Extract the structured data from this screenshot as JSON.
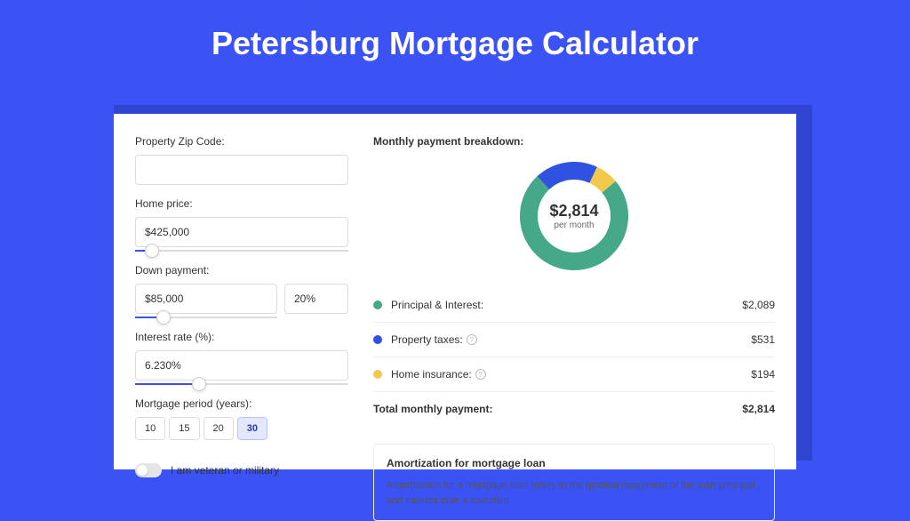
{
  "page": {
    "title": "Petersburg Mortgage Calculator",
    "background_color": "#3b52f5",
    "shadow_color": "#2f44d0",
    "card_bg": "#ffffff"
  },
  "form": {
    "zip": {
      "label": "Property Zip Code:",
      "value": ""
    },
    "home_price": {
      "label": "Home price:",
      "value": "$425,000",
      "slider_pct": 8
    },
    "down_payment": {
      "label": "Down payment:",
      "amount": "$85,000",
      "percent": "20%",
      "slider_pct": 20
    },
    "interest_rate": {
      "label": "Interest rate (%):",
      "value": "6.230%",
      "slider_pct": 30
    },
    "period": {
      "label": "Mortgage period (years):",
      "options": [
        "10",
        "15",
        "20",
        "30"
      ],
      "active": "30"
    },
    "veteran": {
      "label": "I am veteran or military",
      "on": false
    }
  },
  "breakdown": {
    "title": "Monthly payment breakdown:",
    "center_value": "$2,814",
    "center_sub": "per month",
    "donut": {
      "type": "donut",
      "size": 122,
      "rotation_deg": -40,
      "stroke_width": 20,
      "segments": [
        {
          "key": "pi",
          "fraction": 0.742,
          "color": "#44a889"
        },
        {
          "key": "tax",
          "fraction": 0.189,
          "color": "#2f53e0"
        },
        {
          "key": "ins",
          "fraction": 0.069,
          "color": "#f2c94c"
        }
      ]
    },
    "rows": [
      {
        "dot": "#44a889",
        "label": "Principal & Interest:",
        "help": false,
        "value": "$2,089"
      },
      {
        "dot": "#2f53e0",
        "label": "Property taxes:",
        "help": true,
        "value": "$531"
      },
      {
        "dot": "#f2c94c",
        "label": "Home insurance:",
        "help": true,
        "value": "$194"
      }
    ],
    "total": {
      "label": "Total monthly payment:",
      "value": "$2,814"
    }
  },
  "amortization": {
    "title": "Amortization for mortgage loan",
    "text": "Amortization for a mortgage loan refers to the gradual repayment of the loan principal and interest over a specified"
  }
}
